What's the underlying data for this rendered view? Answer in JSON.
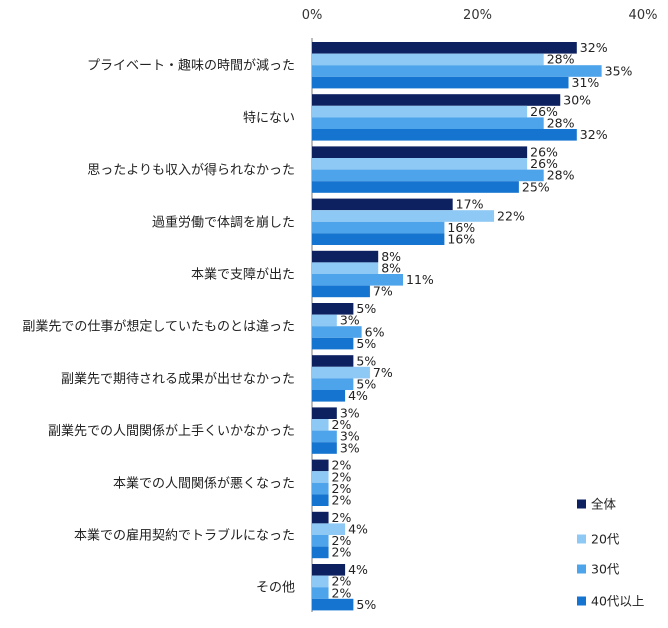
{
  "chart_data": {
    "type": "bar",
    "orientation": "horizontal",
    "title": "",
    "xlabel": "",
    "ylabel": "",
    "xlim": [
      0,
      40
    ],
    "ticks": [
      "0%",
      "20%",
      "40%"
    ],
    "tick_values": [
      0,
      20,
      40
    ],
    "grid": false,
    "legend_position": "bottom-right",
    "categories": [
      "プライベート・趣味の時間が減った",
      "特にない",
      "思ったよりも収入が得られなかった",
      "過重労働で体調を崩した",
      "本業で支障が出た",
      "副業先での仕事が想定していたものとは違った",
      "副業先で期待される成果が出せなかった",
      "副業先での人間関係が上手くいかなかった",
      "本業での人間関係が悪くなった",
      "本業での雇用契約でトラブルになった",
      "その他"
    ],
    "series": [
      {
        "name": "全体",
        "color": "#0d2160",
        "values": [
          32,
          30,
          26,
          17,
          8,
          5,
          5,
          3,
          2,
          2,
          4
        ],
        "labels": [
          "32%",
          "30%",
          "26%",
          "17%",
          "8%",
          "5%",
          "5%",
          "3%",
          "2%",
          "2%",
          "4%"
        ]
      },
      {
        "name": "20代",
        "color": "#8ec8f4",
        "values": [
          28,
          26,
          26,
          22,
          8,
          3,
          7,
          2,
          2,
          4,
          2
        ],
        "labels": [
          "28%",
          "26%",
          "26%",
          "22%",
          "8%",
          "3%",
          "7%",
          "2%",
          "2%",
          "4%",
          "2%"
        ]
      },
      {
        "name": "30代",
        "color": "#4ea4ea",
        "values": [
          35,
          28,
          28,
          16,
          11,
          6,
          5,
          3,
          2,
          2,
          2
        ],
        "labels": [
          "35%",
          "28%",
          "28%",
          "16%",
          "11%",
          "6%",
          "5%",
          "3%",
          "2%",
          "2%",
          "2%"
        ]
      },
      {
        "name": "40代以上",
        "color": "#1574d0",
        "values": [
          31,
          32,
          25,
          16,
          7,
          5,
          4,
          3,
          2,
          2,
          5
        ],
        "labels": [
          "31%",
          "32%",
          "25%",
          "16%",
          "7%",
          "5%",
          "4%",
          "3%",
          "2%",
          "2%",
          "5%"
        ]
      }
    ]
  }
}
